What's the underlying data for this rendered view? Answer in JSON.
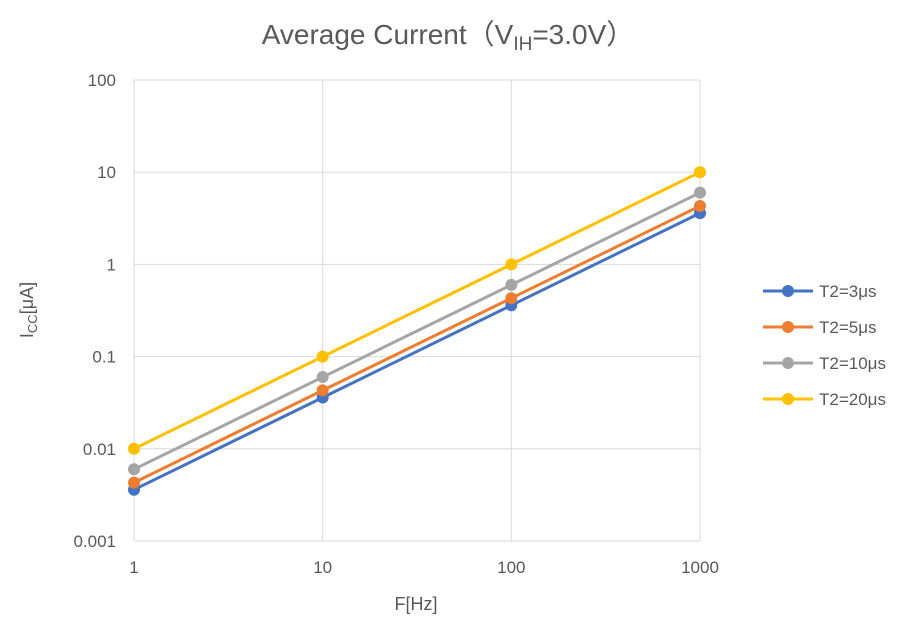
{
  "chart_data": {
    "type": "line",
    "title": {
      "prefix": "Average Current（V",
      "subscript": "IH",
      "suffix": "=3.0V）"
    },
    "xlabel": "F[Hz]",
    "ylabel": {
      "main": "I",
      "subscript": "CC",
      "suffix": "[μA]"
    },
    "x_scale": "log",
    "y_scale": "log",
    "xlim": [
      1,
      1000
    ],
    "ylim": [
      0.001,
      100
    ],
    "x_ticks": [
      1,
      10,
      100,
      1000
    ],
    "x_tick_labels": [
      "1",
      "10",
      "100",
      "1000"
    ],
    "y_ticks": [
      0.001,
      0.01,
      0.1,
      1,
      10,
      100
    ],
    "y_tick_labels": [
      "0.001",
      "0.01",
      "0.1",
      "1",
      "10",
      "100"
    ],
    "grid": true,
    "legend_position": "right",
    "x": [
      1,
      10,
      100,
      1000
    ],
    "series": [
      {
        "name": "T2=3μs",
        "color": "#4472c4",
        "values": [
          0.0036,
          0.036,
          0.36,
          3.6
        ]
      },
      {
        "name": "T2=5μs",
        "color": "#ed7d31",
        "values": [
          0.0043,
          0.043,
          0.43,
          4.3
        ]
      },
      {
        "name": "T2=10μs",
        "color": "#a5a5a5",
        "values": [
          0.006,
          0.06,
          0.6,
          6.0
        ]
      },
      {
        "name": "T2=20μs",
        "color": "#ffc000",
        "values": [
          0.01,
          0.1,
          1.0,
          10.0
        ]
      }
    ]
  }
}
